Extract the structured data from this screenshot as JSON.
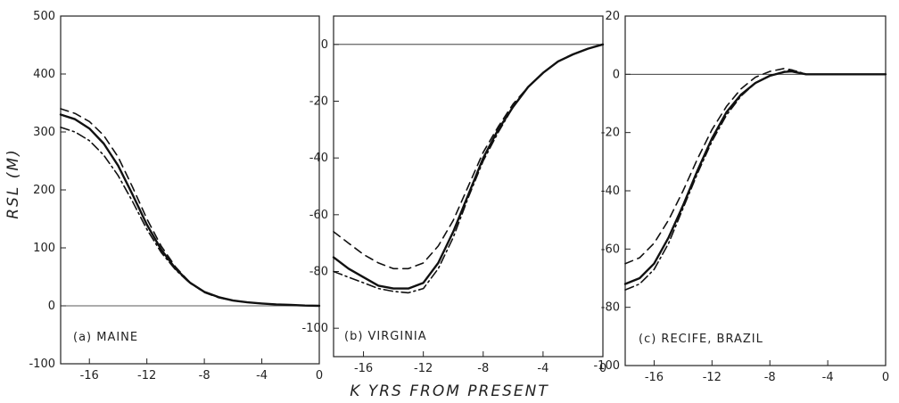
{
  "figure": {
    "xlabel": "K YRS FROM PRESENT",
    "ylabel": "RSL (M)"
  },
  "chart_data": [
    {
      "type": "line",
      "title": "(a) MAINE",
      "xlim": [
        -18,
        0
      ],
      "ylim": [
        -100,
        500
      ],
      "xticks": [
        -16,
        -12,
        -8,
        -4,
        0
      ],
      "yticks": [
        500,
        400,
        300,
        200,
        100,
        0,
        -100
      ],
      "xtick_labels": [
        "-16",
        "-12",
        "-8",
        "-4",
        "0"
      ],
      "ytick_labels": [
        "500",
        "400",
        "300",
        "200",
        "100",
        "0",
        "-100"
      ],
      "zero_line": true,
      "grid": false,
      "series": [
        {
          "style": "dashed",
          "x": [
            -18,
            -17,
            -16,
            -15,
            -14,
            -13,
            -12,
            -11,
            -10,
            -9,
            -8,
            -7,
            -6,
            -5,
            -4,
            -3,
            -2,
            -1,
            0
          ],
          "y": [
            340,
            332,
            318,
            294,
            257,
            205,
            150,
            103,
            67,
            40,
            23,
            14,
            9,
            6,
            4,
            2.5,
            1.5,
            0.5,
            0
          ]
        },
        {
          "style": "solid",
          "x": [
            -18,
            -17,
            -16,
            -15,
            -14,
            -13,
            -12,
            -11,
            -10,
            -9,
            -8,
            -7,
            -6,
            -5,
            -4,
            -3,
            -2,
            -1,
            0
          ],
          "y": [
            330,
            322,
            306,
            280,
            242,
            192,
            140,
            97,
            64,
            40,
            24,
            15,
            9,
            6,
            4,
            2.5,
            1.5,
            0.5,
            0
          ]
        },
        {
          "style": "dashdot",
          "x": [
            -18,
            -17,
            -16,
            -15,
            -14,
            -13,
            -12,
            -11,
            -10,
            -9,
            -8,
            -7,
            -6,
            -5,
            -4,
            -3,
            -2,
            -1,
            0
          ],
          "y": [
            308,
            300,
            285,
            260,
            225,
            180,
            132,
            92,
            62,
            39,
            24,
            15,
            9,
            6,
            4,
            2.5,
            1.5,
            0.5,
            0
          ]
        }
      ]
    },
    {
      "type": "line",
      "title": "(b) VIRGINIA",
      "xlim": [
        -18,
        0
      ],
      "ylim": [
        -110,
        10
      ],
      "xticks": [
        -16,
        -12,
        -8,
        -4,
        0
      ],
      "yticks": [
        0,
        -20,
        -40,
        -60,
        -80,
        -100
      ],
      "xtick_labels": [
        "-16",
        "-12",
        "-8",
        "-4",
        "0"
      ],
      "ytick_labels": [
        "0",
        "-20",
        "-40",
        "-60",
        "-80",
        "-100"
      ],
      "zero_line": true,
      "grid": false,
      "series": [
        {
          "style": "dashed",
          "x": [
            -18,
            -17,
            -16,
            -15,
            -14,
            -13,
            -12,
            -11,
            -10,
            -9,
            -8,
            -7,
            -6,
            -5,
            -4,
            -3,
            -2,
            -1,
            0
          ],
          "y": [
            -66,
            -70,
            -74,
            -77,
            -79,
            -79,
            -77,
            -71,
            -62,
            -50,
            -38,
            -29,
            -21,
            -15,
            -10,
            -6,
            -3.5,
            -1.5,
            0
          ]
        },
        {
          "style": "solid",
          "x": [
            -18,
            -17,
            -16,
            -15,
            -14,
            -13,
            -12,
            -11,
            -10,
            -9,
            -8,
            -7,
            -6,
            -5,
            -4,
            -3,
            -2,
            -1,
            0
          ],
          "y": [
            -75,
            -79,
            -82,
            -85,
            -86,
            -86,
            -84,
            -77,
            -66,
            -53,
            -40,
            -30,
            -22,
            -15,
            -10,
            -6,
            -3.5,
            -1.5,
            0
          ]
        },
        {
          "style": "dashdot",
          "x": [
            -18,
            -17,
            -16,
            -15,
            -14,
            -13,
            -12,
            -11,
            -10,
            -9,
            -8,
            -7,
            -6,
            -5,
            -4,
            -3,
            -2,
            -1,
            0
          ],
          "y": [
            -80,
            -82,
            -84,
            -86,
            -87,
            -87.5,
            -86,
            -79,
            -68,
            -54,
            -41,
            -31,
            -22,
            -15,
            -10,
            -6,
            -3.5,
            -1.5,
            0
          ]
        }
      ]
    },
    {
      "type": "line",
      "title": "(c) RECIFE, BRAZIL",
      "xlim": [
        -18,
        0
      ],
      "ylim": [
        -100,
        20
      ],
      "xticks": [
        -16,
        -12,
        -8,
        -4,
        0
      ],
      "yticks": [
        20,
        0,
        -20,
        -40,
        -60,
        -80,
        -100
      ],
      "xtick_labels": [
        "-16",
        "-12",
        "-8",
        "-4",
        "0"
      ],
      "ytick_labels": [
        "20",
        "0",
        "-20",
        "-40",
        "-60",
        "-80",
        "-100"
      ],
      "zero_line": true,
      "grid": false,
      "series": [
        {
          "style": "dashed",
          "x": [
            -18,
            -17,
            -16,
            -15,
            -14,
            -13,
            -12,
            -11,
            -10,
            -9,
            -8,
            -7,
            -6.5,
            -6,
            -5.5,
            -5,
            -4,
            -3,
            -2,
            -1,
            0
          ],
          "y": [
            -65,
            -63,
            -58,
            -50,
            -40,
            -29,
            -19,
            -11,
            -5,
            -1,
            1,
            2,
            1.5,
            0.5,
            0,
            0,
            0,
            0,
            0,
            0,
            0
          ]
        },
        {
          "style": "solid",
          "x": [
            -18,
            -17,
            -16,
            -15,
            -14,
            -13,
            -12,
            -11,
            -10,
            -9,
            -8,
            -7,
            -6.5,
            -6,
            -5.5,
            -5,
            -4,
            -3,
            -2,
            -1,
            0
          ],
          "y": [
            -72,
            -70,
            -65,
            -56,
            -45,
            -33,
            -22,
            -13,
            -7,
            -3,
            -0.5,
            0.8,
            1,
            0.5,
            0,
            0,
            0,
            0,
            0,
            0,
            0
          ]
        },
        {
          "style": "dashdot",
          "x": [
            -18,
            -17,
            -16,
            -15,
            -14,
            -13,
            -12,
            -11,
            -10,
            -9,
            -8,
            -7,
            -6.5,
            -6,
            -5.5,
            -5,
            -4,
            -3,
            -2,
            -1,
            0
          ],
          "y": [
            -74,
            -72,
            -67,
            -58,
            -46,
            -34,
            -23,
            -14,
            -7.5,
            -3,
            -0.5,
            1,
            1.5,
            0.8,
            0,
            0,
            0,
            0,
            0,
            0,
            0
          ]
        }
      ]
    }
  ]
}
